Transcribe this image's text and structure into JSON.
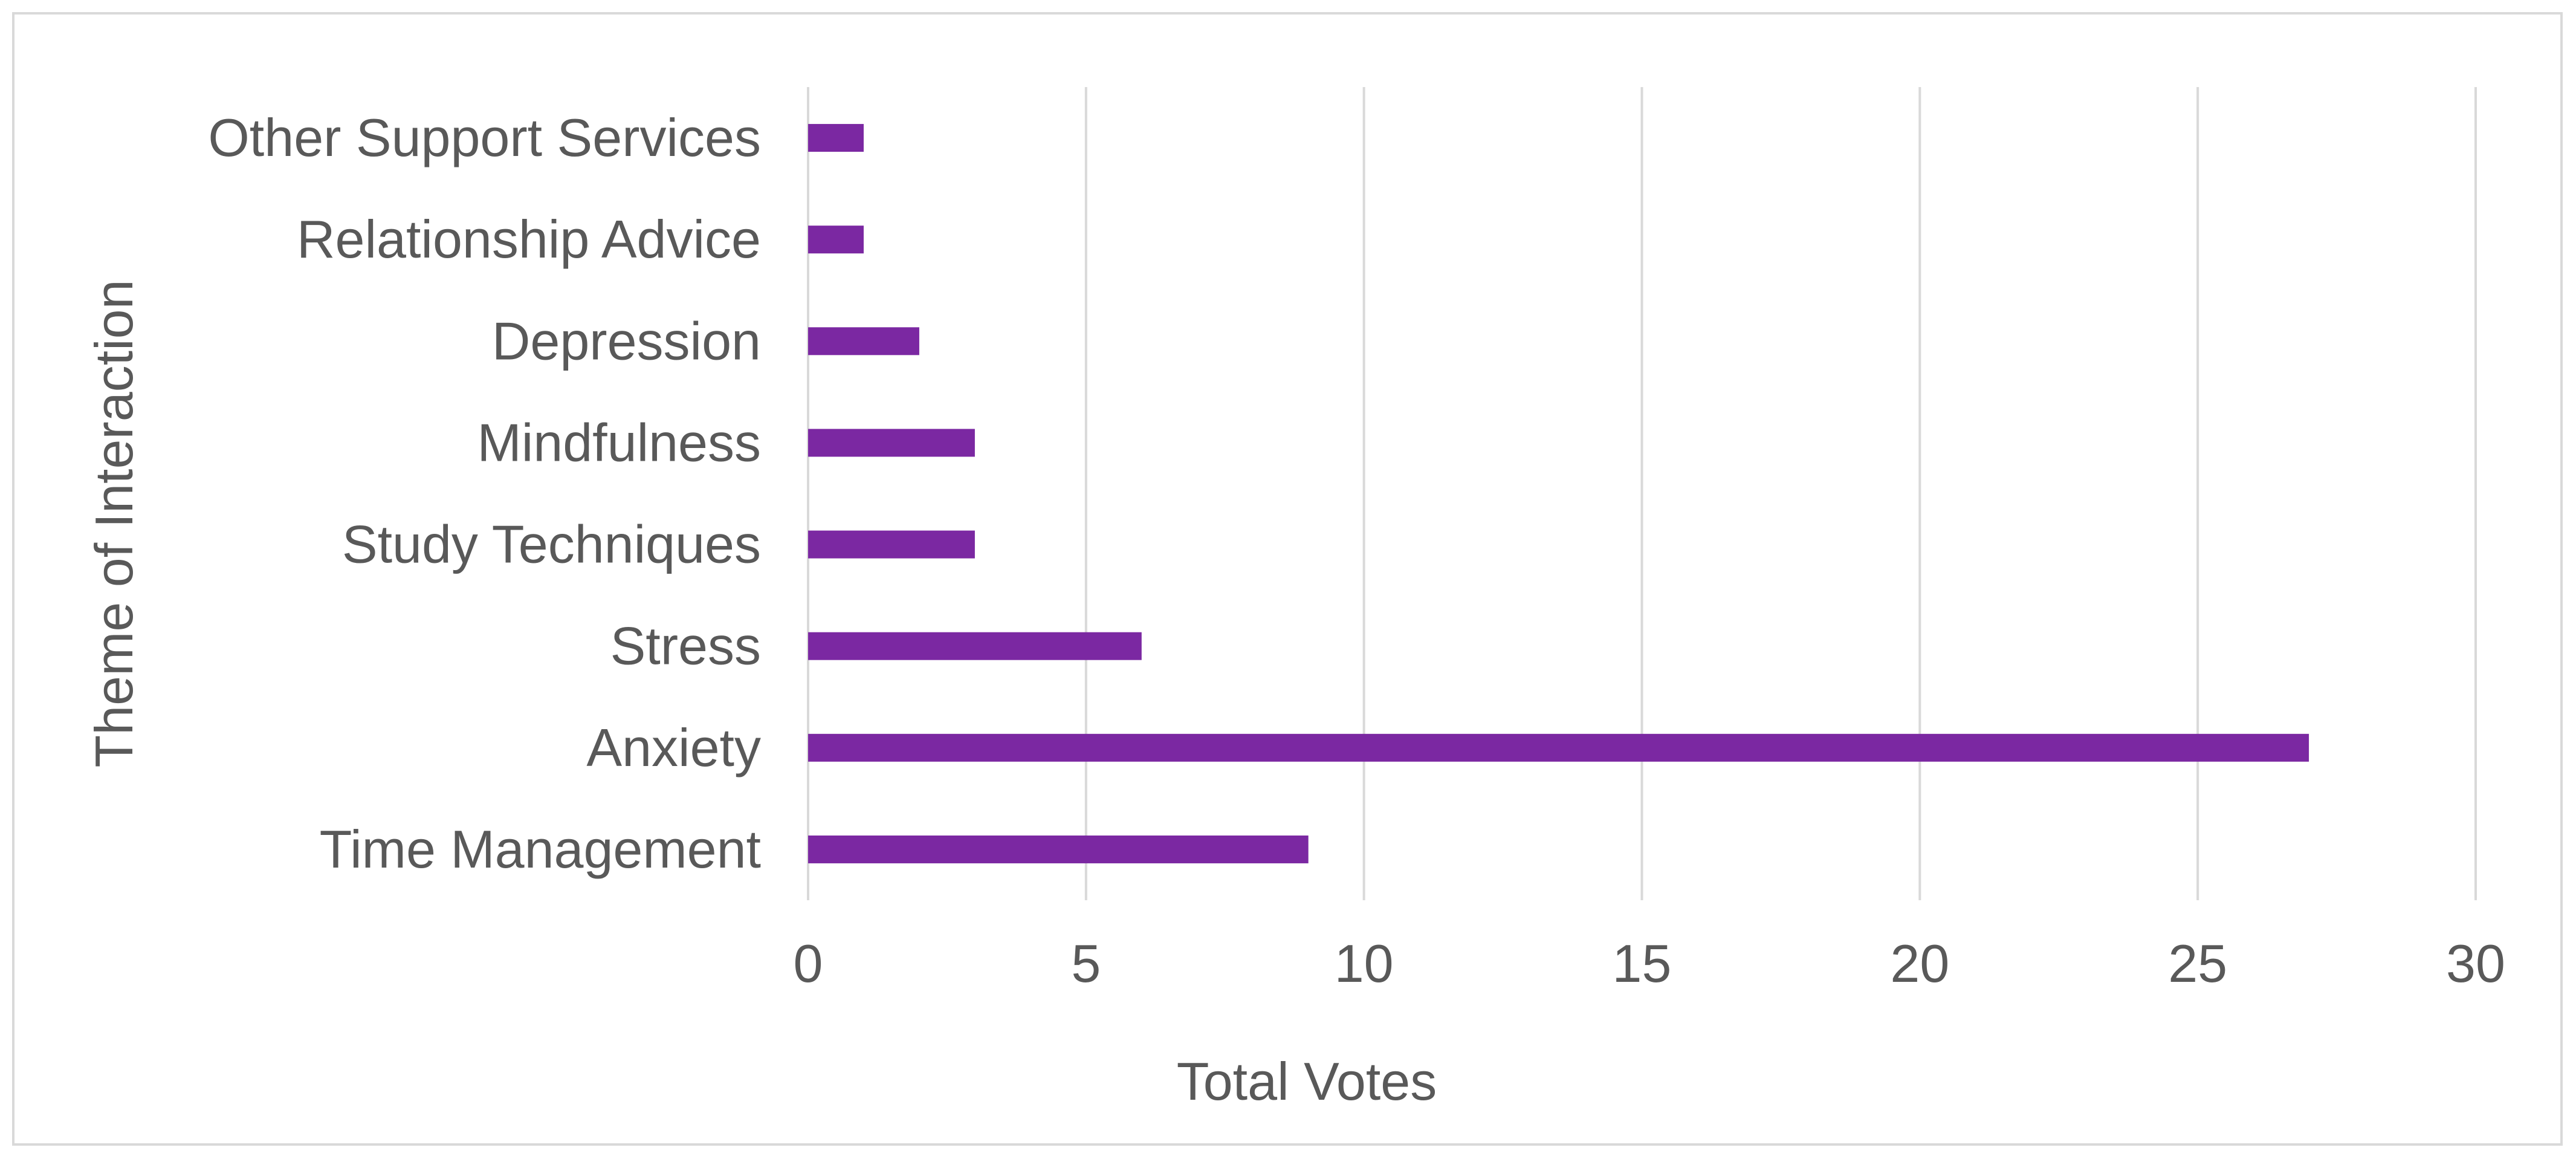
{
  "chart_data": {
    "type": "bar",
    "orientation": "horizontal",
    "categories": [
      "Time Management",
      "Anxiety",
      "Stress",
      "Study Techniques",
      "Mindfulness",
      "Depression",
      "Relationship Advice",
      "Other Support Services"
    ],
    "values": [
      9,
      27,
      6,
      3,
      3,
      2,
      1,
      1
    ],
    "title": "",
    "xlabel": "Total Votes",
    "ylabel": "Theme of Interaction",
    "xlim": [
      0,
      30
    ],
    "xticks": [
      "0",
      "5",
      "10",
      "15",
      "20",
      "25",
      "30"
    ],
    "grid": "vertical",
    "legend": "none",
    "bar_color": "#7B28A2",
    "grid_color": "#d9d9d9"
  }
}
